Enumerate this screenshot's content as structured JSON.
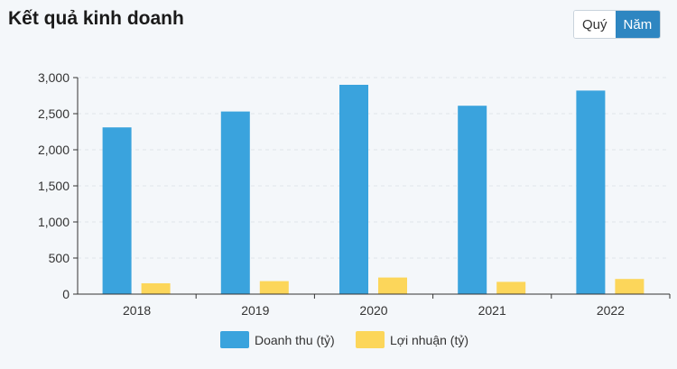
{
  "header": {
    "title": "Kết quả kinh doanh",
    "toggle": [
      {
        "label": "Quý",
        "active": false
      },
      {
        "label": "Năm",
        "active": true
      }
    ]
  },
  "chart_data": {
    "type": "bar",
    "categories": [
      "2018",
      "2019",
      "2020",
      "2021",
      "2022"
    ],
    "series": [
      {
        "name": "Doanh thu (tỷ)",
        "color": "#3aa3dd",
        "values": [
          2310,
          2530,
          2900,
          2610,
          2820
        ]
      },
      {
        "name": "Lợi nhuận (tỷ)",
        "color": "#fcd65a",
        "values": [
          150,
          180,
          230,
          170,
          210
        ]
      }
    ],
    "ylim": [
      0,
      3000
    ],
    "yticks": [
      0,
      500,
      1000,
      1500,
      2000,
      2500,
      3000
    ],
    "ytick_labels": [
      "0",
      "500",
      "1,000",
      "1,500",
      "2,000",
      "2,500",
      "3,000"
    ],
    "grid": true,
    "legend_position": "bottom-center"
  }
}
